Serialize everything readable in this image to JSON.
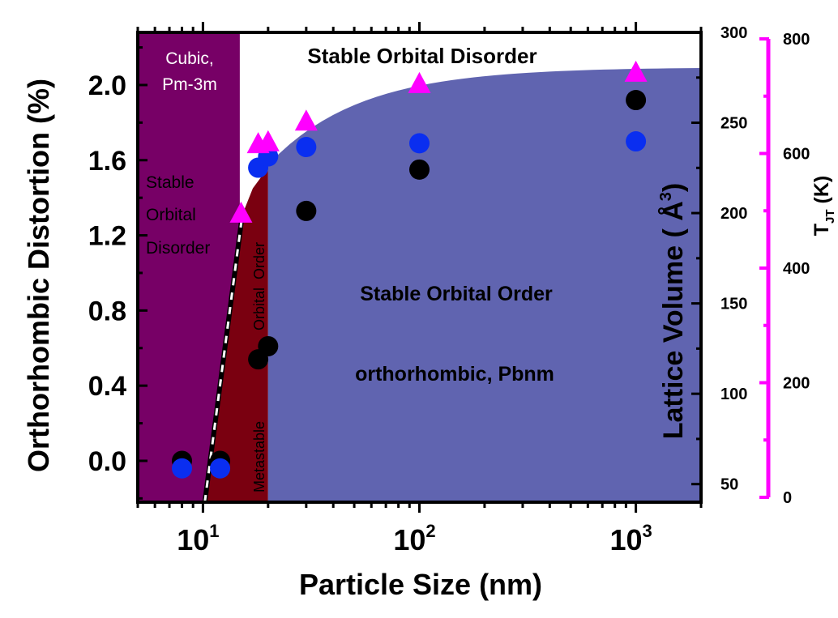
{
  "chart_data": {
    "type": "scatter",
    "x_scale": "log",
    "xlabel": "Particle Size (nm)",
    "ylabel": "Orthorhombic Distortion (%)",
    "xlim": [
      5,
      2000
    ],
    "ylim": [
      -0.22,
      2.28
    ],
    "x_ticks": [
      {
        "value": 10,
        "base": "10",
        "exp": "1"
      },
      {
        "value": 100,
        "base": "10",
        "exp": "2"
      },
      {
        "value": 1000,
        "base": "10",
        "exp": "3"
      }
    ],
    "y_ticks": [
      {
        "value": 0.0,
        "label": "0.0"
      },
      {
        "value": 0.4,
        "label": "0.4"
      },
      {
        "value": 0.8,
        "label": "0.8"
      },
      {
        "value": 1.2,
        "label": "1.2"
      },
      {
        "value": 1.6,
        "label": "1.6"
      },
      {
        "value": 2.0,
        "label": "2.0"
      }
    ],
    "y2": {
      "label": "Lattice Volume ( Å",
      "label_sup": "3",
      "label_end": ")",
      "lim": [
        40,
        300
      ],
      "ticks": [
        {
          "value": 50,
          "label": "50"
        },
        {
          "value": 100,
          "label": "100"
        },
        {
          "value": 150,
          "label": "150"
        },
        {
          "value": 200,
          "label": "200"
        },
        {
          "value": 250,
          "label": "250"
        },
        {
          "value": 300,
          "label": "300"
        }
      ]
    },
    "y3": {
      "label_main": "T",
      "label_sub": "JT",
      "label_end": " (K)",
      "lim": [
        0,
        800
      ],
      "color": "#ff00ff",
      "ticks": [
        {
          "value": 0,
          "label": "0"
        },
        {
          "value": 200,
          "label": "200"
        },
        {
          "value": 400,
          "label": "400"
        },
        {
          "value": 600,
          "label": "600"
        },
        {
          "value": 800,
          "label": "800"
        }
      ]
    },
    "series": [
      {
        "marker": "circle",
        "color": "#000000",
        "axis": "y",
        "points": [
          [
            8,
            0.0
          ],
          [
            12,
            0.0
          ],
          [
            18,
            0.54
          ],
          [
            20,
            0.61
          ],
          [
            30,
            1.33
          ],
          [
            100,
            1.55
          ],
          [
            1000,
            1.92
          ]
        ]
      },
      {
        "marker": "circle",
        "color": "#0a2ef0",
        "axis": "y",
        "points": [
          [
            8,
            -0.04
          ],
          [
            12,
            -0.04
          ],
          [
            18,
            1.56
          ],
          [
            20,
            1.62
          ],
          [
            30,
            1.67
          ],
          [
            100,
            1.69
          ],
          [
            1000,
            1.7
          ]
        ]
      },
      {
        "marker": "triangle",
        "color": "#ff00ff",
        "axis": "y",
        "points": [
          [
            15,
            1.31
          ],
          [
            18,
            1.68
          ],
          [
            20,
            1.69
          ],
          [
            30,
            1.8
          ],
          [
            100,
            2.0
          ],
          [
            1000,
            2.06
          ]
        ]
      }
    ],
    "regions": [
      {
        "name": "cubic-disorder-region",
        "color": "#770066"
      },
      {
        "name": "metastable-region",
        "color": "#7a0010"
      },
      {
        "name": "stable-order-region",
        "color": "#6064b0"
      }
    ],
    "annotations": {
      "cubic_line1": "Cubic,",
      "cubic_line2": "Pm-3m",
      "stable_disorder_top": "Stable Orbital Disorder",
      "left_line1": "Stable",
      "left_line2": "Orbital",
      "left_line3": "Disorder",
      "orbital_order_vertical": "Orbital  Order",
      "metastable_vertical": "Metastable",
      "stable_order": "Stable Orbital Order",
      "phase": "orthorhombic, Pbnm"
    }
  }
}
